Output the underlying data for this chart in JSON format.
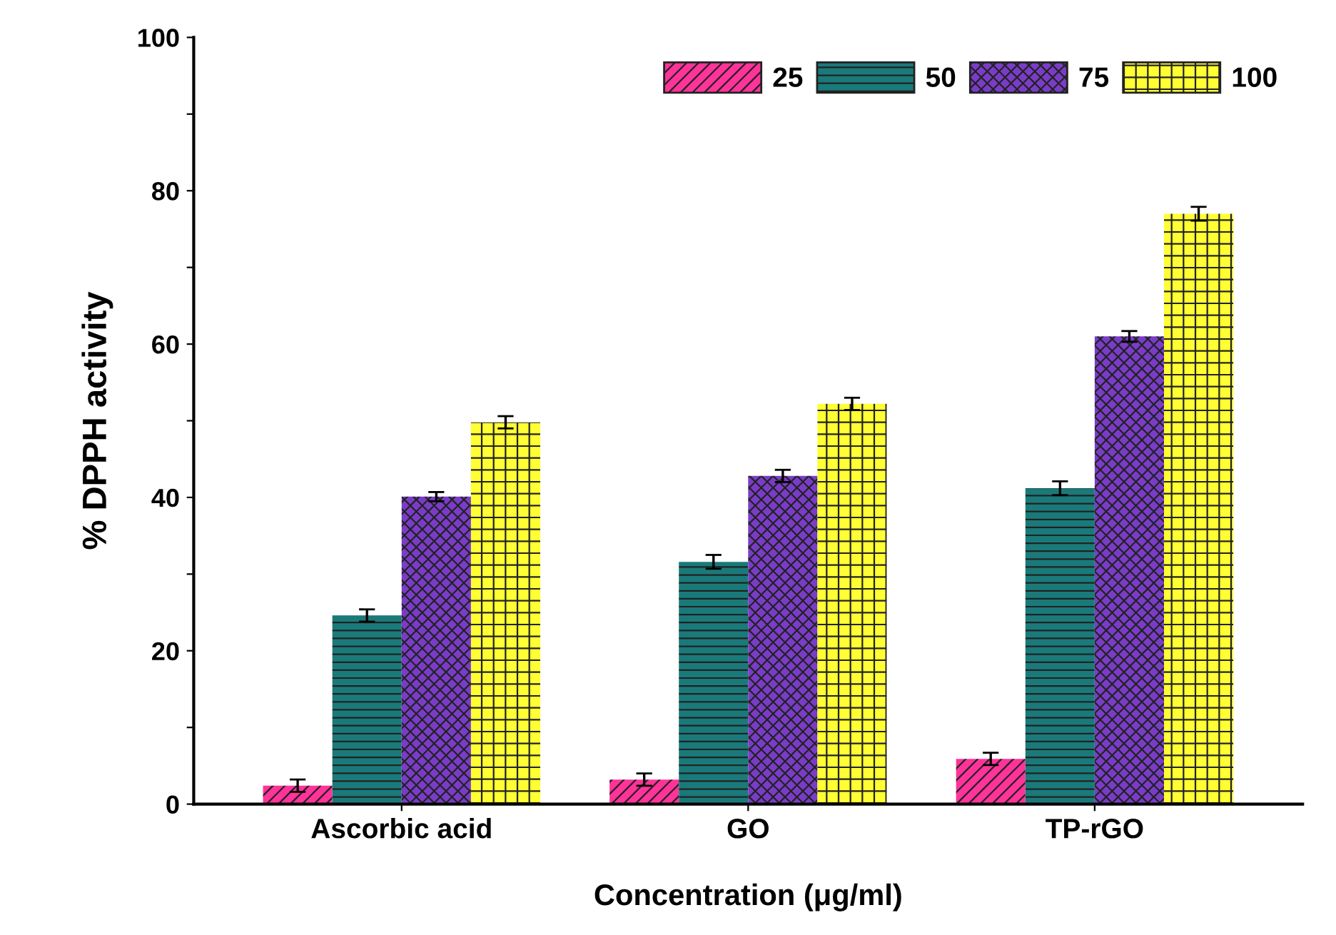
{
  "chart_data": {
    "type": "bar",
    "xlabel": "Concentration (μg/ml)",
    "ylabel": "% DPPH activity",
    "categories": [
      "Ascorbic acid",
      "GO",
      "TP-rGO"
    ],
    "series": [
      {
        "name": "25",
        "color": "#ff3399",
        "values": [
          2.4,
          3.2,
          5.9
        ],
        "errors": [
          0.8,
          0.8,
          0.8
        ]
      },
      {
        "name": "50",
        "color": "#1a7a7a",
        "values": [
          24.6,
          31.6,
          41.2
        ],
        "errors": [
          0.8,
          0.9,
          0.9
        ]
      },
      {
        "name": "75",
        "color": "#7a3cc8",
        "values": [
          40.1,
          42.8,
          61.0
        ],
        "errors": [
          0.6,
          0.8,
          0.7
        ]
      },
      {
        "name": "100",
        "color": "#ffff33",
        "values": [
          49.8,
          52.2,
          77.0
        ],
        "errors": [
          0.8,
          0.8,
          0.9
        ]
      }
    ],
    "ylim": [
      0,
      100
    ],
    "yticks": [
      0,
      {
        "value": 10,
        "label": null
      },
      20,
      {
        "value": 30,
        "label": null
      },
      40,
      {
        "value": 50,
        "label": null
      },
      60,
      {
        "value": 70,
        "label": null
      },
      80,
      {
        "value": 90,
        "label": null
      },
      100
    ],
    "grid": false,
    "legend": "top right"
  }
}
